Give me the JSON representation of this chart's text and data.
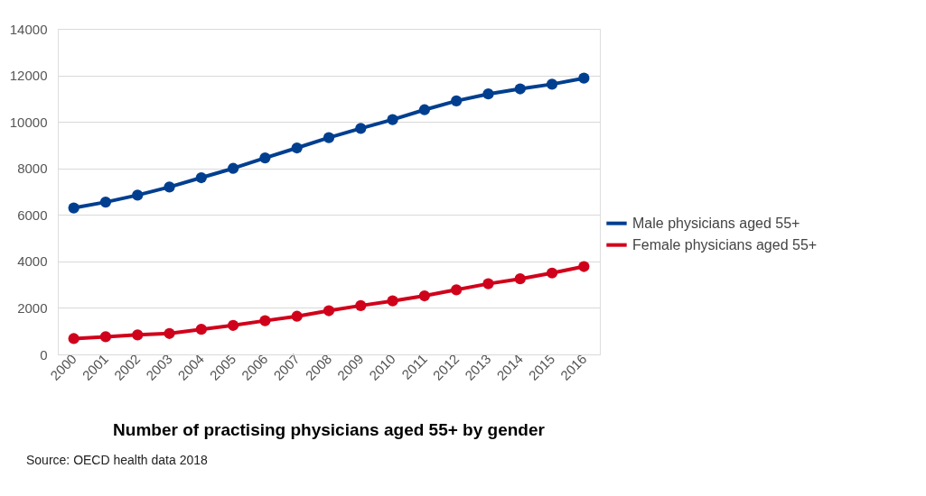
{
  "chart_data": {
    "type": "line",
    "title": "Number of practising physicians aged 55+ by gender",
    "categories": [
      "2000",
      "2001",
      "2002",
      "2003",
      "2004",
      "2005",
      "2006",
      "2007",
      "2008",
      "2009",
      "2010",
      "2011",
      "2012",
      "2013",
      "2014",
      "2015",
      "2016"
    ],
    "series": [
      {
        "name": "Male physicians aged 55+",
        "color": "#003f8f",
        "values": [
          6300,
          6550,
          6850,
          7200,
          7600,
          8000,
          8450,
          8880,
          9320,
          9720,
          10100,
          10520,
          10900,
          11200,
          11420,
          11620,
          11880
        ]
      },
      {
        "name": "Female physicians aged 55+",
        "color": "#d0021b",
        "values": [
          680,
          760,
          840,
          900,
          1080,
          1250,
          1450,
          1640,
          1880,
          2100,
          2300,
          2520,
          2780,
          3040,
          3250,
          3500,
          3780
        ]
      }
    ],
    "ylim": [
      0,
      14000
    ],
    "yticks": [
      0,
      2000,
      4000,
      6000,
      8000,
      10000,
      12000,
      14000
    ],
    "grid": "y",
    "legend": "right",
    "marker": "circle",
    "line_style": "solid",
    "annotations": [
      "Source: OECD health data 2018"
    ]
  }
}
